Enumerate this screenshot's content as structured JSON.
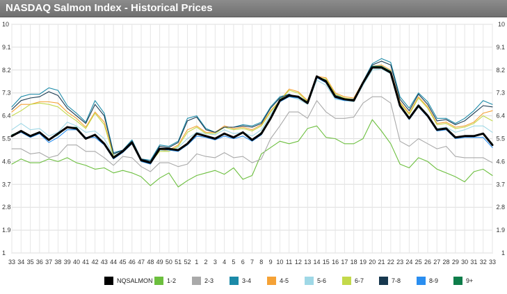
{
  "header": {
    "title": "NASDAQ Salmon Index - Historical Prices"
  },
  "chart_data": {
    "type": "line",
    "title": "NASDAQ Salmon Index - Historical Prices",
    "xlabel": "",
    "ylabel": "",
    "ylim": [
      1,
      10
    ],
    "yticks": [
      "1",
      "1.9",
      "2.8",
      "3.7",
      "4.6",
      "5.5",
      "6.4",
      "7.3",
      "8.2",
      "9.1",
      "10"
    ],
    "grid": true,
    "legend_position": "bottom",
    "x": [
      "33",
      "34",
      "35",
      "36",
      "37",
      "38",
      "39",
      "40",
      "41",
      "42",
      "43",
      "44",
      "45",
      "46",
      "47",
      "48",
      "49",
      "50",
      "51",
      "52",
      "1",
      "2",
      "3",
      "4",
      "5",
      "6",
      "7",
      "8",
      "9",
      "10",
      "11",
      "12",
      "13",
      "14",
      "15",
      "16",
      "17",
      "18",
      "19",
      "20",
      "21",
      "22",
      "23",
      "24",
      "25",
      "26",
      "27",
      "28",
      "29",
      "30",
      "31",
      "32",
      "33"
    ],
    "series": [
      {
        "name": "NQSALMON",
        "color": "#000000",
        "values": [
          5.6,
          5.8,
          5.6,
          5.75,
          5.45,
          5.7,
          5.95,
          5.9,
          5.5,
          5.65,
          5.3,
          4.75,
          5.0,
          5.35,
          4.65,
          4.55,
          5.1,
          5.1,
          5.05,
          5.3,
          5.7,
          5.6,
          5.5,
          5.7,
          5.55,
          5.75,
          5.45,
          5.7,
          6.3,
          7.0,
          7.2,
          7.15,
          6.9,
          7.95,
          7.75,
          7.15,
          7.05,
          7.0,
          7.7,
          8.3,
          8.3,
          8.1,
          6.8,
          6.3,
          6.8,
          6.4,
          5.85,
          5.9,
          5.55,
          5.6,
          5.6,
          5.7,
          5.25
        ]
      },
      {
        "name": "1-2",
        "color": "#6cbf3e",
        "values": [
          4.5,
          4.7,
          4.55,
          4.55,
          4.7,
          4.6,
          4.75,
          4.55,
          4.45,
          4.3,
          4.35,
          4.15,
          4.25,
          4.15,
          4.0,
          3.65,
          3.95,
          4.15,
          3.6,
          3.85,
          4.05,
          4.15,
          4.25,
          4.1,
          4.35,
          3.9,
          4.05,
          4.9,
          5.15,
          5.4,
          5.3,
          5.4,
          5.9,
          6.0,
          5.55,
          5.5,
          5.3,
          5.3,
          5.5,
          6.25,
          5.8,
          5.3,
          4.5,
          4.35,
          4.75,
          4.6,
          4.3,
          4.15,
          4.0,
          3.8,
          4.2,
          4.3,
          4.05
        ]
      },
      {
        "name": "2-3",
        "color": "#a9a9a9",
        "values": [
          5.1,
          5.1,
          4.9,
          4.95,
          4.75,
          4.85,
          5.25,
          5.25,
          5.0,
          5.0,
          4.75,
          4.45,
          4.8,
          4.75,
          4.4,
          4.2,
          4.55,
          4.55,
          4.4,
          4.5,
          4.9,
          4.8,
          4.75,
          4.95,
          4.75,
          4.8,
          4.55,
          4.7,
          5.5,
          6.0,
          6.55,
          6.55,
          6.3,
          7.0,
          6.55,
          6.3,
          6.3,
          6.35,
          6.9,
          7.15,
          7.15,
          6.9,
          5.4,
          5.2,
          5.5,
          5.3,
          5.1,
          5.2,
          4.8,
          4.75,
          4.75,
          4.75,
          4.55
        ]
      },
      {
        "name": "3-4",
        "color": "#1b8aa8",
        "values": [
          6.75,
          7.15,
          7.25,
          7.25,
          7.5,
          7.4,
          6.8,
          6.5,
          6.15,
          7.0,
          6.5,
          4.95,
          5.05,
          5.45,
          4.7,
          4.65,
          5.25,
          5.2,
          5.4,
          6.3,
          6.4,
          5.9,
          5.75,
          5.95,
          5.95,
          6.05,
          6.0,
          6.15,
          6.75,
          7.15,
          7.25,
          7.1,
          7.0,
          7.95,
          7.8,
          7.25,
          7.05,
          7.05,
          7.75,
          8.45,
          8.65,
          8.5,
          7.15,
          6.7,
          7.3,
          6.95,
          6.3,
          6.3,
          6.1,
          6.3,
          6.6,
          7.0,
          6.85
        ]
      },
      {
        "name": "4-5",
        "color": "#f5a236",
        "values": [
          6.55,
          6.85,
          6.85,
          6.95,
          6.95,
          6.9,
          6.55,
          6.3,
          5.95,
          6.55,
          6.15,
          4.85,
          5.05,
          5.35,
          4.65,
          4.6,
          5.05,
          5.05,
          5.25,
          5.85,
          6.0,
          5.75,
          5.75,
          6.0,
          5.9,
          5.95,
          5.85,
          6.05,
          6.6,
          7.0,
          7.45,
          7.35,
          7.0,
          7.95,
          7.9,
          7.3,
          7.15,
          7.1,
          7.75,
          8.35,
          8.4,
          8.2,
          6.95,
          6.5,
          7.15,
          6.75,
          6.1,
          6.15,
          5.95,
          6.0,
          6.15,
          6.5,
          6.6
        ]
      },
      {
        "name": "5-6",
        "color": "#9fd8e6",
        "values": [
          5.85,
          6.1,
          5.85,
          5.9,
          5.6,
          5.75,
          6.15,
          6.0,
          5.75,
          5.8,
          5.5,
          4.85,
          5.05,
          5.3,
          4.6,
          4.5,
          5.05,
          5.0,
          5.15,
          5.5,
          5.75,
          5.7,
          5.65,
          5.85,
          5.7,
          5.75,
          5.6,
          5.85,
          6.45,
          7.0,
          7.15,
          7.05,
          6.85,
          7.8,
          7.6,
          7.05,
          7.0,
          6.95,
          7.6,
          8.2,
          8.25,
          8.05,
          6.75,
          6.3,
          6.85,
          6.45,
          5.9,
          5.95,
          5.75,
          5.85,
          6.0,
          6.0,
          5.75
        ]
      },
      {
        "name": "6-7",
        "color": "#c3d94a",
        "values": [
          6.4,
          6.6,
          6.85,
          6.9,
          6.85,
          6.75,
          6.45,
          6.2,
          5.9,
          6.5,
          6.05,
          4.8,
          5.0,
          5.3,
          4.6,
          4.55,
          5.0,
          5.0,
          5.2,
          5.75,
          5.95,
          5.7,
          5.7,
          5.95,
          5.85,
          5.9,
          5.8,
          6.0,
          6.55,
          7.0,
          7.4,
          7.3,
          6.95,
          7.9,
          7.85,
          7.25,
          7.1,
          7.05,
          7.7,
          8.3,
          8.35,
          8.15,
          6.9,
          6.45,
          7.1,
          6.7,
          6.05,
          6.1,
          5.9,
          5.95,
          6.1,
          6.4,
          6.2
        ]
      },
      {
        "name": "7-8",
        "color": "#17384f",
        "values": [
          6.65,
          7.0,
          7.1,
          7.15,
          7.35,
          7.2,
          6.7,
          6.4,
          6.1,
          6.85,
          6.4,
          4.9,
          5.05,
          5.4,
          4.7,
          4.6,
          5.2,
          5.15,
          5.35,
          6.2,
          6.35,
          5.85,
          5.75,
          5.95,
          5.95,
          6.0,
          5.95,
          6.1,
          6.7,
          7.1,
          7.25,
          7.1,
          6.95,
          7.9,
          7.8,
          7.2,
          7.05,
          7.05,
          7.75,
          8.4,
          8.55,
          8.4,
          7.05,
          6.6,
          7.25,
          6.85,
          6.2,
          6.25,
          6.05,
          6.2,
          6.5,
          6.8,
          6.75
        ]
      },
      {
        "name": "8-9",
        "color": "#2a8ef0",
        "values": [
          5.6,
          5.75,
          5.55,
          5.7,
          5.35,
          5.55,
          5.85,
          5.85,
          5.55,
          5.55,
          5.25,
          4.7,
          4.95,
          5.3,
          4.6,
          4.5,
          5.1,
          5.05,
          5.0,
          5.25,
          5.6,
          5.55,
          5.45,
          5.6,
          5.5,
          5.6,
          5.4,
          5.65,
          6.3,
          6.95,
          7.15,
          7.1,
          6.9,
          7.9,
          7.7,
          7.1,
          7.0,
          7.0,
          7.7,
          8.35,
          8.35,
          8.15,
          6.75,
          6.25,
          6.75,
          6.35,
          5.8,
          5.85,
          5.5,
          5.55,
          5.55,
          5.55,
          5.15
        ]
      },
      {
        "name": "9+",
        "color": "#0e7d4a",
        "values": [
          5.65,
          5.8,
          5.6,
          5.75,
          5.45,
          5.65,
          5.95,
          5.95,
          5.5,
          5.65,
          5.3,
          4.75,
          5.0,
          5.35,
          4.65,
          4.55,
          5.1,
          5.1,
          5.05,
          5.3,
          5.7,
          5.6,
          5.5,
          5.7,
          5.55,
          5.75,
          5.45,
          5.75,
          6.35,
          7.05,
          7.2,
          7.15,
          6.9,
          7.95,
          7.75,
          7.15,
          7.05,
          7.0,
          7.7,
          8.35,
          8.35,
          8.15,
          6.8,
          6.3,
          6.8,
          6.4,
          5.85,
          5.9,
          5.55,
          5.6,
          5.6,
          5.7,
          5.3
        ]
      }
    ]
  }
}
